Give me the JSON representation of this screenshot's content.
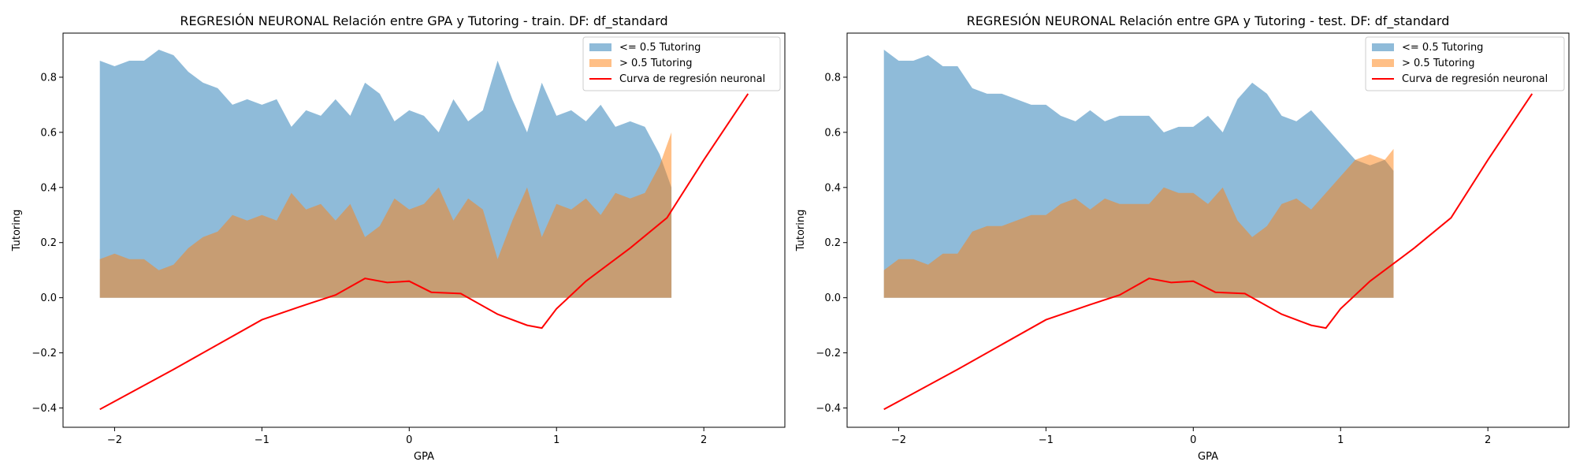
{
  "chart_data": [
    {
      "type": "area",
      "title": "REGRESIÓN NEURONAL Relación entre GPA y Tutoring - train. DF: df_standard",
      "xlabel": "GPA",
      "ylabel": "Tutoring",
      "xlim": [
        -2.35,
        2.55
      ],
      "ylim": [
        -0.47,
        0.96
      ],
      "xticks": [
        -2,
        -1,
        0,
        1,
        2
      ],
      "yticks": [
        -0.4,
        -0.2,
        0.0,
        0.2,
        0.4,
        0.6,
        0.8
      ],
      "legend": {
        "placement": "top-right"
      },
      "series": [
        {
          "name": "<= 0.5 Tutoring",
          "color": "#1f77b4",
          "x": [
            -2.1,
            -2.0,
            -1.9,
            -1.8,
            -1.7,
            -1.6,
            -1.5,
            -1.4,
            -1.3,
            -1.2,
            -1.1,
            -1.0,
            -0.9,
            -0.8,
            -0.7,
            -0.6,
            -0.5,
            -0.4,
            -0.3,
            -0.2,
            -0.1,
            0.0,
            0.1,
            0.2,
            0.3,
            0.4,
            0.5,
            0.6,
            0.7,
            0.8,
            0.9,
            1.0,
            1.1,
            1.2,
            1.3,
            1.4,
            1.5,
            1.6,
            1.7,
            1.78
          ],
          "y": [
            0.86,
            0.84,
            0.86,
            0.86,
            0.9,
            0.88,
            0.82,
            0.78,
            0.76,
            0.7,
            0.72,
            0.7,
            0.72,
            0.62,
            0.68,
            0.66,
            0.72,
            0.66,
            0.78,
            0.74,
            0.64,
            0.68,
            0.66,
            0.6,
            0.72,
            0.64,
            0.68,
            0.86,
            0.72,
            0.6,
            0.78,
            0.66,
            0.68,
            0.64,
            0.7,
            0.62,
            0.64,
            0.62,
            0.52,
            0.4
          ]
        },
        {
          "name": "> 0.5 Tutoring",
          "color": "#ff7f0e",
          "x": [
            -2.1,
            -2.0,
            -1.9,
            -1.8,
            -1.7,
            -1.6,
            -1.5,
            -1.4,
            -1.3,
            -1.2,
            -1.1,
            -1.0,
            -0.9,
            -0.8,
            -0.7,
            -0.6,
            -0.5,
            -0.4,
            -0.3,
            -0.2,
            -0.1,
            0.0,
            0.1,
            0.2,
            0.3,
            0.4,
            0.5,
            0.6,
            0.7,
            0.8,
            0.9,
            1.0,
            1.1,
            1.2,
            1.3,
            1.4,
            1.5,
            1.6,
            1.7,
            1.78
          ],
          "y": [
            0.14,
            0.16,
            0.14,
            0.14,
            0.1,
            0.12,
            0.18,
            0.22,
            0.24,
            0.3,
            0.28,
            0.3,
            0.28,
            0.38,
            0.32,
            0.34,
            0.28,
            0.34,
            0.22,
            0.26,
            0.36,
            0.32,
            0.34,
            0.4,
            0.28,
            0.36,
            0.32,
            0.14,
            0.28,
            0.4,
            0.22,
            0.34,
            0.32,
            0.36,
            0.3,
            0.38,
            0.36,
            0.38,
            0.48,
            0.6
          ]
        },
        {
          "name": "Curva de regresión neuronal",
          "type": "line",
          "color": "#ff0000",
          "x": [
            -2.1,
            -1.6,
            -1.0,
            -0.7,
            -0.5,
            -0.3,
            -0.15,
            0.0,
            0.15,
            0.35,
            0.6,
            0.8,
            0.9,
            1.0,
            1.2,
            1.5,
            1.75,
            2.0,
            2.3
          ],
          "y": [
            -0.405,
            -0.26,
            -0.08,
            -0.025,
            0.01,
            0.07,
            0.055,
            0.06,
            0.02,
            0.015,
            -0.06,
            -0.1,
            -0.11,
            -0.04,
            0.06,
            0.18,
            0.29,
            0.5,
            0.74
          ]
        }
      ]
    },
    {
      "type": "area",
      "title": "REGRESIÓN NEURONAL Relación entre GPA y Tutoring - test. DF: df_standard",
      "xlabel": "GPA",
      "ylabel": "Tutoring",
      "xlim": [
        -2.35,
        2.55
      ],
      "ylim": [
        -0.47,
        0.96
      ],
      "xticks": [
        -2,
        -1,
        0,
        1,
        2
      ],
      "yticks": [
        -0.4,
        -0.2,
        0.0,
        0.2,
        0.4,
        0.6,
        0.8
      ],
      "legend": {
        "placement": "top-right"
      },
      "series": [
        {
          "name": "<= 0.5 Tutoring",
          "color": "#1f77b4",
          "x": [
            -2.1,
            -2.0,
            -1.9,
            -1.8,
            -1.7,
            -1.6,
            -1.5,
            -1.4,
            -1.3,
            -1.2,
            -1.1,
            -1.0,
            -0.9,
            -0.8,
            -0.7,
            -0.6,
            -0.5,
            -0.4,
            -0.3,
            -0.2,
            -0.1,
            0.0,
            0.1,
            0.2,
            0.3,
            0.4,
            0.5,
            0.6,
            0.7,
            0.8,
            0.9,
            1.0,
            1.1,
            1.2,
            1.3,
            1.36
          ],
          "y": [
            0.9,
            0.86,
            0.86,
            0.88,
            0.84,
            0.84,
            0.76,
            0.74,
            0.74,
            0.72,
            0.7,
            0.7,
            0.66,
            0.64,
            0.68,
            0.64,
            0.66,
            0.66,
            0.66,
            0.6,
            0.62,
            0.62,
            0.66,
            0.6,
            0.72,
            0.78,
            0.74,
            0.66,
            0.64,
            0.68,
            0.62,
            0.56,
            0.5,
            0.48,
            0.5,
            0.46
          ]
        },
        {
          "name": "> 0.5 Tutoring",
          "color": "#ff7f0e",
          "x": [
            -2.1,
            -2.0,
            -1.9,
            -1.8,
            -1.7,
            -1.6,
            -1.5,
            -1.4,
            -1.3,
            -1.2,
            -1.1,
            -1.0,
            -0.9,
            -0.8,
            -0.7,
            -0.6,
            -0.5,
            -0.4,
            -0.3,
            -0.2,
            -0.1,
            0.0,
            0.1,
            0.2,
            0.3,
            0.4,
            0.5,
            0.6,
            0.7,
            0.8,
            0.9,
            1.0,
            1.1,
            1.2,
            1.3,
            1.36
          ],
          "y": [
            0.1,
            0.14,
            0.14,
            0.12,
            0.16,
            0.16,
            0.24,
            0.26,
            0.26,
            0.28,
            0.3,
            0.3,
            0.34,
            0.36,
            0.32,
            0.36,
            0.34,
            0.34,
            0.34,
            0.4,
            0.38,
            0.38,
            0.34,
            0.4,
            0.28,
            0.22,
            0.26,
            0.34,
            0.36,
            0.32,
            0.38,
            0.44,
            0.5,
            0.52,
            0.5,
            0.54
          ]
        },
        {
          "name": "Curva de regresión neuronal",
          "type": "line",
          "color": "#ff0000",
          "x": [
            -2.1,
            -1.6,
            -1.0,
            -0.7,
            -0.5,
            -0.3,
            -0.15,
            0.0,
            0.15,
            0.35,
            0.6,
            0.8,
            0.9,
            1.0,
            1.2,
            1.5,
            1.75,
            2.0,
            2.3
          ],
          "y": [
            -0.405,
            -0.26,
            -0.08,
            -0.025,
            0.01,
            0.07,
            0.055,
            0.06,
            0.02,
            0.015,
            -0.06,
            -0.1,
            -0.11,
            -0.04,
            0.06,
            0.18,
            0.29,
            0.5,
            0.74
          ]
        }
      ]
    }
  ]
}
